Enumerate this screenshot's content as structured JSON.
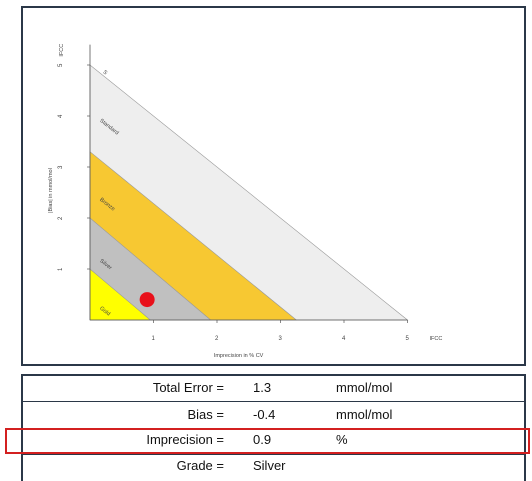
{
  "chart_data": {
    "type": "area",
    "xlabel": "Imprecision in % CV",
    "ylabel": "|Bias| in mmol/mol",
    "x_end_label": "IFCC",
    "y_end_label": "IFCC",
    "xlim": [
      0,
      6
    ],
    "ylim": [
      0,
      10
    ],
    "x_ticks": [
      1,
      2,
      3,
      4,
      5
    ],
    "y_ticks": [
      1,
      2,
      3,
      4,
      5
    ],
    "bands": [
      {
        "name": "Gold",
        "x_intercept": 0.95,
        "y_intercept": 1.0,
        "color": "#ffff00"
      },
      {
        "name": "Silver",
        "x_intercept": 1.9,
        "y_intercept": 2.0,
        "color": "#c0c0c0"
      },
      {
        "name": "Bronze",
        "x_intercept": 3.25,
        "y_intercept": 3.3,
        "color": "#f7c832"
      },
      {
        "name": "Standard",
        "x_intercept": 5.0,
        "y_intercept": 5.0,
        "color": "#eeeeee"
      },
      {
        "name": "S",
        "x_intercept": null,
        "y_intercept": null,
        "color": null
      }
    ],
    "point": {
      "x": 0.9,
      "y": 0.4,
      "color": "#e8101a"
    }
  },
  "results": [
    {
      "label": "Total Error =",
      "value": "1.3",
      "unit": "mmol/mol"
    },
    {
      "label": "Bias =",
      "value": "-0.4",
      "unit": "mmol/mol"
    },
    {
      "label": "Imprecision =",
      "value": "0.9",
      "unit": "%"
    },
    {
      "label": "Grade =",
      "value": "Silver",
      "unit": ""
    }
  ]
}
